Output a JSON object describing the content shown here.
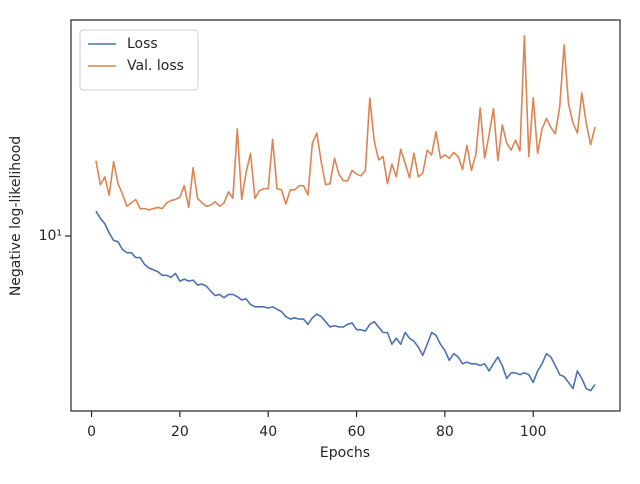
{
  "chart_data": {
    "type": "line",
    "xlabel": "Epochs",
    "ylabel": "Negative log-likelihood",
    "x": [
      1,
      2,
      3,
      4,
      5,
      6,
      7,
      8,
      9,
      10,
      11,
      12,
      13,
      14,
      15,
      16,
      17,
      18,
      19,
      20,
      21,
      22,
      23,
      24,
      25,
      26,
      27,
      28,
      29,
      30,
      31,
      32,
      33,
      34,
      35,
      36,
      37,
      38,
      39,
      40,
      41,
      42,
      43,
      44,
      45,
      46,
      47,
      48,
      49,
      50,
      51,
      52,
      53,
      54,
      55,
      56,
      57,
      58,
      59,
      60,
      61,
      62,
      63,
      64,
      65,
      66,
      67,
      68,
      69,
      70,
      71,
      72,
      73,
      74,
      75,
      76,
      77,
      78,
      79,
      80,
      81,
      82,
      83,
      84,
      85,
      86,
      87,
      88,
      89,
      90,
      91,
      92,
      93,
      94,
      95,
      96,
      97,
      98,
      99,
      100,
      101,
      102,
      103,
      104,
      105,
      106,
      107,
      108,
      109,
      110,
      111,
      112,
      113,
      114
    ],
    "series": [
      {
        "name": "Loss",
        "color": "#4c72b0",
        "values": [
          11.9,
          11.3,
          10.9,
          10.2,
          9.7,
          9.6,
          9.1,
          8.9,
          8.9,
          8.6,
          8.6,
          8.2,
          8.0,
          7.9,
          7.8,
          7.6,
          7.6,
          7.5,
          7.7,
          7.3,
          7.4,
          7.3,
          7.35,
          7.1,
          7.15,
          7.05,
          6.8,
          6.6,
          6.65,
          6.5,
          6.65,
          6.65,
          6.55,
          6.4,
          6.45,
          6.2,
          6.1,
          6.1,
          6.1,
          6.05,
          6.1,
          6.0,
          5.9,
          5.7,
          5.6,
          5.65,
          5.6,
          5.6,
          5.4,
          5.65,
          5.8,
          5.7,
          5.5,
          5.3,
          5.35,
          5.3,
          5.3,
          5.4,
          5.45,
          5.2,
          5.2,
          5.15,
          5.4,
          5.5,
          5.3,
          5.1,
          5.1,
          4.7,
          4.9,
          4.7,
          5.1,
          4.9,
          4.8,
          4.6,
          4.35,
          4.7,
          5.1,
          5.0,
          4.7,
          4.5,
          4.2,
          4.4,
          4.3,
          4.1,
          4.15,
          4.1,
          4.1,
          4.05,
          4.1,
          3.9,
          4.1,
          4.3,
          4.05,
          3.7,
          3.85,
          3.85,
          3.8,
          3.85,
          3.8,
          3.6,
          3.9,
          4.1,
          4.4,
          4.3,
          4.05,
          3.8,
          3.75,
          3.6,
          3.45,
          3.9,
          3.7,
          3.45,
          3.4,
          3.55
        ]
      },
      {
        "name": "Val. loss",
        "color": "#dd8452",
        "values": [
          16.9,
          14.3,
          15.1,
          13.3,
          16.8,
          14.4,
          13.4,
          12.3,
          12.6,
          12.9,
          12.1,
          12.1,
          12.0,
          12.1,
          12.2,
          12.1,
          12.6,
          12.8,
          12.9,
          13.1,
          14.2,
          12.2,
          16.1,
          13.0,
          12.6,
          12.3,
          12.4,
          12.7,
          12.3,
          12.6,
          13.6,
          13.0,
          21.1,
          12.9,
          15.6,
          17.8,
          13.0,
          13.7,
          13.9,
          13.9,
          19.6,
          13.9,
          13.8,
          12.5,
          13.8,
          13.8,
          14.2,
          14.2,
          13.3,
          19.1,
          20.5,
          16.8,
          14.3,
          14.4,
          17.2,
          15.4,
          14.7,
          14.7,
          15.8,
          15.4,
          15.2,
          15.8,
          26.2,
          19.4,
          17.0,
          17.4,
          14.4,
          16.5,
          15.1,
          18.3,
          16.6,
          15.0,
          17.8,
          15.1,
          15.5,
          18.2,
          17.6,
          20.7,
          17.2,
          17.6,
          17.2,
          17.9,
          17.4,
          15.9,
          18.8,
          15.8,
          17.6,
          24.4,
          17.2,
          20.2,
          24.3,
          16.9,
          21.7,
          19.1,
          18.2,
          19.5,
          18.1,
          40.4,
          17.4,
          26.2,
          17.8,
          21.1,
          22.7,
          21.3,
          20.4,
          24.6,
          37.9,
          25.1,
          22.0,
          20.5,
          27.1,
          22.0,
          18.9,
          21.4
        ]
      }
    ],
    "xlim": [
      -4.65,
      119.65
    ],
    "xticks": [
      0,
      20,
      40,
      60,
      80,
      100
    ],
    "ylim": [
      2.95,
      45.1
    ],
    "ylog": true,
    "yticks": [
      {
        "value": 10,
        "label": "10¹"
      }
    ],
    "grid": false,
    "legend": "upper left"
  }
}
